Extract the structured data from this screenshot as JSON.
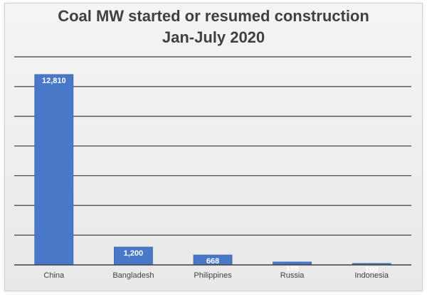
{
  "chart_data": {
    "type": "bar",
    "title_lines": [
      "Coal MW started or resumed construction",
      "Jan-July 2020"
    ],
    "categories": [
      "China",
      "Bangladesh",
      "Philippines",
      "Russia",
      "Indonesia"
    ],
    "values": [
      12810,
      1200,
      668,
      195,
      100
    ],
    "data_labels": [
      "12,810",
      "1,200",
      "668",
      "195",
      "100"
    ],
    "ylim": [
      0,
      14000
    ],
    "grid": true,
    "legend": "none",
    "colors": {
      "bar": "#4a78c8",
      "bar_stroke": "#3a64ad",
      "grid": "#3f3f3f",
      "axis": "#404040"
    }
  }
}
